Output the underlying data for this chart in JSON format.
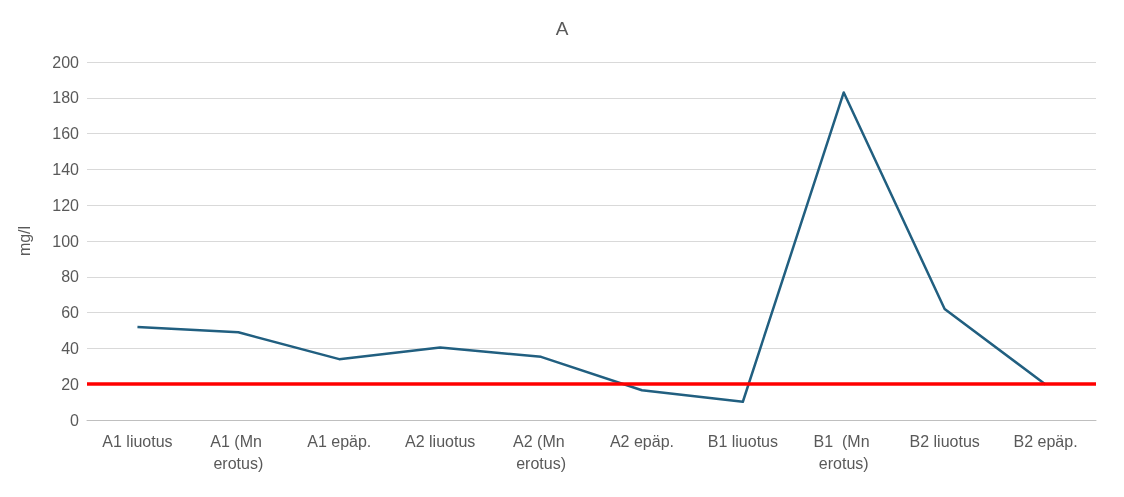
{
  "chart_data": {
    "type": "line",
    "title": "A",
    "ylabel": "mg/l",
    "categories": [
      "A1 liuotus",
      "A1 (Mn erotus)",
      "A1 epäp.",
      "A2 liuotus",
      "A2 (Mn erotus)",
      "A2 epäp.",
      "B1 liuotus",
      "B1  (Mn erotus)",
      "B2 liuotus",
      "B2 epäp."
    ],
    "series": [
      {
        "color": "#215f80",
        "values": [
          52,
          49,
          34,
          40.5,
          35.3,
          16.6,
          10.2,
          183,
          62,
          19.8
        ]
      }
    ],
    "ylim": [
      0,
      200
    ],
    "yticks": [
      0,
      20,
      40,
      60,
      80,
      100,
      120,
      140,
      160,
      180,
      200
    ],
    "grid": "y",
    "marker": "none",
    "line_style": "solid",
    "ref_lines": [
      {
        "axis": "y",
        "value": 20,
        "color": "#ff0000"
      }
    ]
  }
}
